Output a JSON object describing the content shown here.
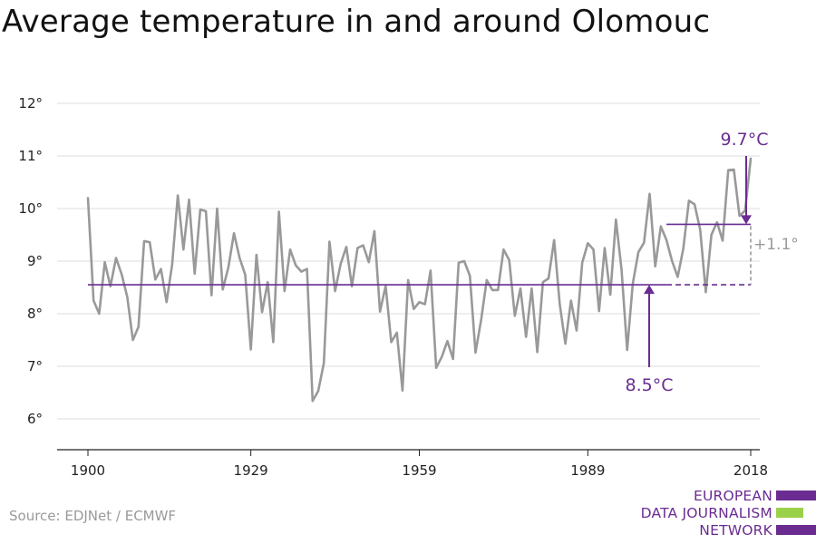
{
  "title": "Average temperature in and around Olomouc",
  "source": "Source: EDJNet / ECMWF",
  "logo": {
    "lines": [
      "EUROPEAN",
      "DATA JOURNALISM",
      "NETWORK"
    ],
    "colors": [
      "#6a2c91",
      "#9bd14a",
      "#6a2c91"
    ]
  },
  "colors": {
    "series": "#999999",
    "accent": "#6a2c91",
    "grid": "#dddddd",
    "axis": "#222222"
  },
  "chart_data": {
    "type": "line",
    "title": "Average temperature in and around Olomouc",
    "xlabel": "",
    "ylabel": "",
    "xlim": [
      1900,
      2018
    ],
    "ylim": [
      6,
      12
    ],
    "xticks": [
      1900,
      1929,
      1959,
      1989,
      2018
    ],
    "yticks": [
      6,
      7,
      8,
      9,
      10,
      11,
      12
    ],
    "ytick_labels": [
      "6°",
      "7°",
      "8°",
      "9°",
      "10°",
      "11°",
      "12°"
    ],
    "grid": true,
    "x": [
      1900,
      1901,
      1902,
      1903,
      1904,
      1905,
      1906,
      1907,
      1908,
      1909,
      1910,
      1911,
      1912,
      1913,
      1914,
      1915,
      1916,
      1917,
      1918,
      1919,
      1920,
      1921,
      1922,
      1923,
      1924,
      1925,
      1926,
      1927,
      1928,
      1929,
      1930,
      1931,
      1932,
      1933,
      1934,
      1935,
      1936,
      1937,
      1938,
      1939,
      1940,
      1941,
      1942,
      1943,
      1944,
      1945,
      1946,
      1947,
      1948,
      1949,
      1950,
      1951,
      1952,
      1953,
      1954,
      1955,
      1956,
      1957,
      1958,
      1959,
      1960,
      1961,
      1962,
      1963,
      1964,
      1965,
      1966,
      1967,
      1968,
      1969,
      1970,
      1971,
      1972,
      1973,
      1974,
      1975,
      1976,
      1977,
      1978,
      1979,
      1980,
      1981,
      1982,
      1983,
      1984,
      1985,
      1986,
      1987,
      1988,
      1989,
      1990,
      1991,
      1992,
      1993,
      1994,
      1995,
      1996,
      1997,
      1998,
      1999,
      2000,
      2001,
      2002,
      2003,
      2004,
      2005,
      2006,
      2007,
      2008,
      2009,
      2010,
      2011,
      2012,
      2013,
      2014,
      2015,
      2016,
      2017,
      2018
    ],
    "series": [
      {
        "values": [
          10.2,
          8.25,
          8.0,
          8.98,
          8.52,
          9.06,
          8.75,
          8.32,
          7.5,
          7.75,
          9.38,
          9.36,
          8.65,
          8.85,
          8.22,
          8.94,
          10.25,
          9.22,
          10.17,
          8.76,
          9.98,
          9.95,
          8.35,
          10.0,
          8.46,
          8.88,
          9.53,
          9.06,
          8.74,
          7.32,
          9.12,
          8.03,
          8.6,
          7.46,
          9.94,
          8.43,
          9.22,
          8.92,
          8.8,
          8.85,
          6.34,
          6.53,
          7.06,
          9.37,
          8.43,
          8.95,
          9.27,
          8.52,
          9.25,
          9.3,
          8.98,
          9.57,
          8.04,
          8.53,
          7.46,
          7.64,
          6.54,
          8.64,
          8.09,
          8.22,
          8.18,
          8.82,
          6.97,
          7.18,
          7.48,
          7.14,
          8.97,
          9.0,
          8.72,
          7.26,
          7.88,
          8.64,
          8.45,
          8.45,
          9.22,
          9.02,
          7.96,
          8.48,
          7.56,
          8.48,
          7.27,
          8.6,
          8.67,
          9.4,
          8.18,
          7.43,
          8.25,
          7.68,
          8.97,
          9.34,
          9.22,
          8.05,
          9.25,
          8.36,
          9.79,
          8.84,
          7.31,
          8.57,
          9.17,
          9.35,
          10.28,
          8.9,
          9.66,
          9.4,
          9.0,
          8.7,
          9.24,
          10.15,
          10.08,
          9.6,
          8.41,
          9.5,
          9.74,
          9.39,
          10.73,
          10.74,
          9.86,
          9.96,
          10.95
        ]
      }
    ],
    "annotations": [
      {
        "label": "9.7°C",
        "value": 9.7,
        "from_x": 2003,
        "to_x": 2018
      },
      {
        "label": "8.5°C",
        "value": 8.55,
        "from_x": 1900,
        "to_x": 2018
      },
      {
        "label": "+1.1°",
        "value_from": 8.55,
        "value_to": 9.7,
        "x": 2018
      }
    ]
  }
}
